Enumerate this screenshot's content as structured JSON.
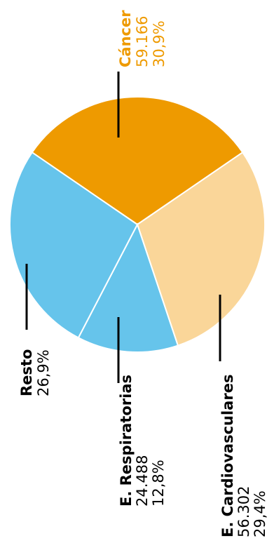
{
  "chart_data": {
    "type": "pie",
    "title": "",
    "unit_note": "",
    "slices": [
      {
        "name": "Cáncer",
        "count": "59.166",
        "percent": "30,9%",
        "value": 30.9,
        "color": "#EE9A00"
      },
      {
        "name": "E. Cardiovasculares",
        "count": "56.302",
        "percent": "29,4%",
        "value": 29.4,
        "color": "#FAD699"
      },
      {
        "name": "E. Respiratorias",
        "count": "24.488",
        "percent": "12,8%",
        "value": 12.8,
        "color": "#66C4EB"
      },
      {
        "name": "Resto",
        "count": "",
        "percent": "26,9%",
        "value": 26.9,
        "color": "#66C4EB"
      }
    ],
    "label_color_cancer": "#EE9A00",
    "label_color_default": "#000000",
    "slice_border_color": "#ffffff",
    "legend": "none",
    "grid": false
  }
}
